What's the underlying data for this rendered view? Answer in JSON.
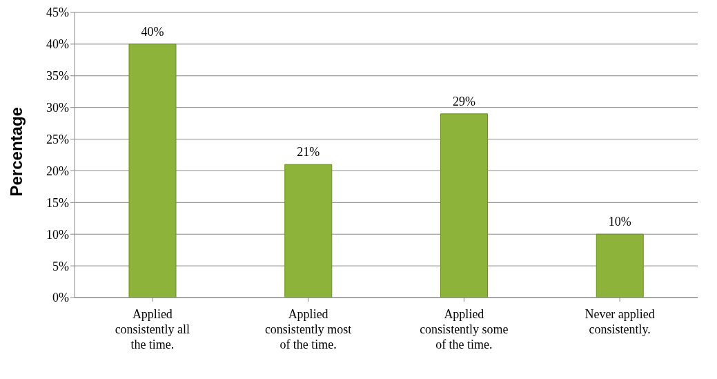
{
  "chart_data": {
    "type": "bar",
    "ylabel": "Percentage",
    "categories": [
      "Applied consistently all the time.",
      "Applied consistently most of the time.",
      "Applied consistently some of the time.",
      "Never applied consistently."
    ],
    "values": [
      40,
      21,
      29,
      10
    ],
    "value_labels": [
      "40%",
      "21%",
      "29%",
      "10%"
    ],
    "color": "#8db33a",
    "ylim": [
      0,
      45
    ],
    "yticks": [
      {
        "value": 0,
        "label": "0%"
      },
      {
        "value": 5,
        "label": "5%"
      },
      {
        "value": 10,
        "label": "10%"
      },
      {
        "value": 15,
        "label": "15%"
      },
      {
        "value": 20,
        "label": "20%"
      },
      {
        "value": 25,
        "label": "25%"
      },
      {
        "value": 30,
        "label": "30%"
      },
      {
        "value": 35,
        "label": "35%"
      },
      {
        "value": 40,
        "label": "40%"
      },
      {
        "value": 45,
        "label": "45%"
      }
    ],
    "grid": "y"
  }
}
